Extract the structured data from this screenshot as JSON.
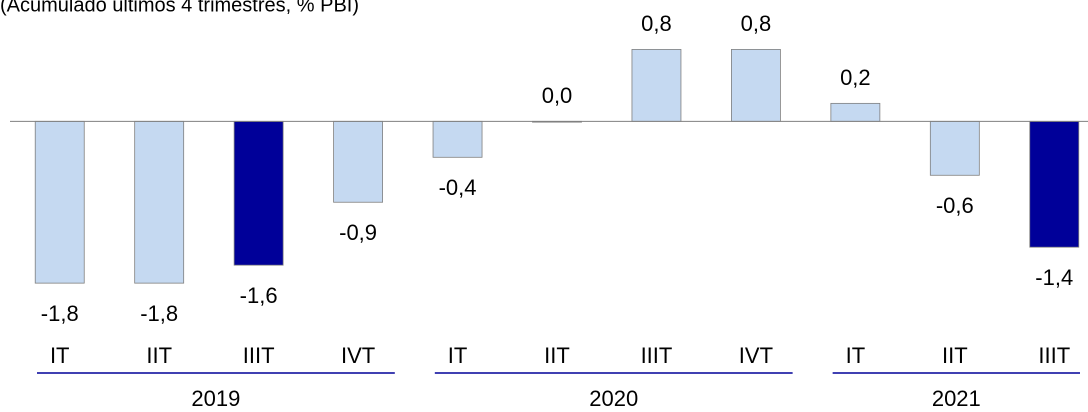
{
  "chart_data": {
    "type": "bar",
    "subtitle": "(Acumulado últimos 4 trimestres, % PBI)",
    "groups": [
      {
        "name": "2019",
        "categories": [
          "IT",
          "IIT",
          "IIIT",
          "IVT"
        ]
      },
      {
        "name": "2020",
        "categories": [
          "IT",
          "IIT",
          "IIIT",
          "IVT"
        ]
      },
      {
        "name": "2021",
        "categories": [
          "IT",
          "IIT",
          "IIIT"
        ]
      }
    ],
    "values": [
      -1.8,
      -1.8,
      -1.6,
      -0.9,
      -0.4,
      0.0,
      0.8,
      0.8,
      0.2,
      -0.6,
      -1.4
    ],
    "value_labels": [
      "-1,8",
      "-1,8",
      "-1,6",
      "-0,9",
      "-0,4",
      "0,0",
      "0,8",
      "0,8",
      "0,2",
      "-0,6",
      "-1,4"
    ],
    "colors": [
      "#c5d9f1",
      "#c5d9f1",
      "#000099",
      "#c5d9f1",
      "#c5d9f1",
      "#c5d9f1",
      "#c5d9f1",
      "#c5d9f1",
      "#c5d9f1",
      "#c5d9f1",
      "#000099"
    ],
    "ylim": [
      -3,
      1.35
    ]
  }
}
